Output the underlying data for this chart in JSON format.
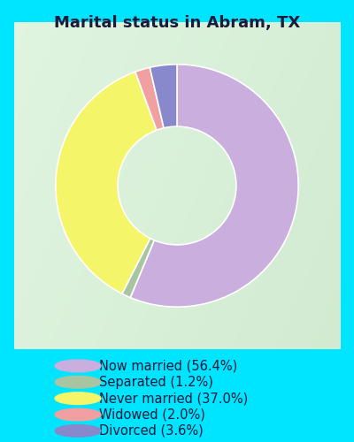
{
  "title": "Marital status in Abram, TX",
  "slices": [
    {
      "label": "Now married (56.4%)",
      "value": 56.4,
      "color": "#c9aede"
    },
    {
      "label": "Separated (1.2%)",
      "value": 1.2,
      "color": "#a8c4a0"
    },
    {
      "label": "Never married (37.0%)",
      "value": 37.0,
      "color": "#f5f56a"
    },
    {
      "label": "Widowed (2.0%)",
      "value": 2.0,
      "color": "#f0a0a0"
    },
    {
      "label": "Divorced (3.6%)",
      "value": 3.6,
      "color": "#8888cc"
    }
  ],
  "bg_color": "#00e5ff",
  "chart_bg_color_tl": "#d8f0e0",
  "chart_bg_color_br": "#c0e8d0",
  "title_color": "#1a1a3a",
  "legend_text_color": "#1a1a3a",
  "title_fontsize": 13,
  "legend_fontsize": 10.5
}
